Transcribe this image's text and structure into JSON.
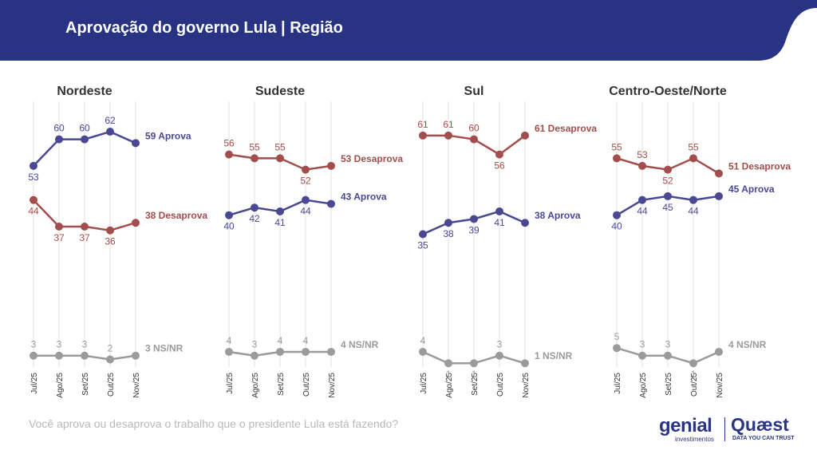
{
  "header": {
    "title": "Aprovação do governo Lula | Região"
  },
  "footer": {
    "question": "Você aprova ou desaprova o trabalho que o presidente Lula está fazendo?",
    "logo_genial": "genial",
    "logo_genial_sub": "investimentos",
    "logo_quaest": "Quæst",
    "logo_quaest_sub": "DATA YOU CAN TRUST"
  },
  "colors": {
    "header_bg": "#283383",
    "aprova": "#4a4893",
    "desaprova": "#a34e4c",
    "nsnr": "#9b9b9b",
    "grid": "#e0e0e0"
  },
  "chart_data": [
    {
      "type": "line",
      "title": "Nordeste",
      "categories": [
        "Jul/25",
        "Ago/25",
        "Set/25",
        "Out/25",
        "Nov/25"
      ],
      "ylim": [
        0,
        70
      ],
      "series": [
        {
          "name": "Aprova",
          "values": [
            53,
            60,
            60,
            62,
            59
          ],
          "end_label": "59 Aprova"
        },
        {
          "name": "Desaprova",
          "values": [
            44,
            37,
            37,
            36,
            38
          ],
          "end_label": "38 Desaprova"
        },
        {
          "name": "NS/NR",
          "values": [
            3,
            3,
            3,
            2,
            3
          ],
          "end_label": "3 NS/NR"
        }
      ]
    },
    {
      "type": "line",
      "title": "Sudeste",
      "categories": [
        "Jul/25",
        "Ago/25",
        "Set/25",
        "Out/25",
        "Nov/25"
      ],
      "ylim": [
        0,
        70
      ],
      "series": [
        {
          "name": "Desaprova",
          "values": [
            56,
            55,
            55,
            52,
            53
          ],
          "end_label": "53 Desaprova"
        },
        {
          "name": "Aprova",
          "values": [
            40,
            42,
            41,
            44,
            43
          ],
          "end_label": "43 Aprova"
        },
        {
          "name": "NS/NR",
          "values": [
            4,
            3,
            4,
            4,
            4
          ],
          "end_label": "4 NS/NR"
        }
      ]
    },
    {
      "type": "line",
      "title": "Sul",
      "categories": [
        "Jul/25",
        "Ago/25",
        "Set/25",
        "Out/25",
        "Nov/25"
      ],
      "ylim": [
        0,
        70
      ],
      "series": [
        {
          "name": "Desaprova",
          "values": [
            61,
            61,
            60,
            56,
            61
          ],
          "end_label": "61 Desaprova"
        },
        {
          "name": "Aprova",
          "values": [
            35,
            38,
            39,
            41,
            38
          ],
          "end_label": "38 Aprova"
        },
        {
          "name": "NS/NR",
          "values": [
            4,
            1,
            1,
            3,
            1
          ],
          "end_label": "1 NS/NR"
        }
      ]
    },
    {
      "type": "line",
      "title": "Centro-Oeste/Norte",
      "categories": [
        "Jul/25",
        "Ago/25",
        "Set/25",
        "Out/25",
        "Nov/25"
      ],
      "ylim": [
        0,
        70
      ],
      "series": [
        {
          "name": "Desaprova",
          "values": [
            55,
            53,
            52,
            55,
            51
          ],
          "end_label": "51 Desaprova"
        },
        {
          "name": "Aprova",
          "values": [
            40,
            44,
            45,
            44,
            45
          ],
          "end_label": "45 Aprova"
        },
        {
          "name": "NS/NR",
          "values": [
            5,
            3,
            3,
            1,
            4
          ],
          "end_label": "4 NS/NR"
        }
      ]
    }
  ]
}
